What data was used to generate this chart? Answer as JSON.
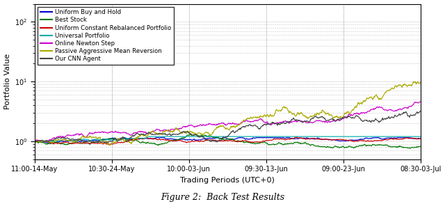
{
  "title": "Figure 2:  Back Test Results",
  "xlabel": "Trading Periods (UTC+0)",
  "ylabel": "Portfolio Value",
  "xtick_labels": [
    "11:00-14-May",
    "10:30-24-May",
    "10:00-03-Jun",
    "09:30-13-Jun",
    "09:00-23-Jun",
    "08:30-03-Jul"
  ],
  "ylim_log": [
    0.5,
    200
  ],
  "legend_entries": [
    {
      "label": "Uniform Buy and Hold",
      "color": "#0000cc",
      "lw": 0.9
    },
    {
      "label": "Best Stock",
      "color": "#007700",
      "lw": 0.9
    },
    {
      "label": "Uniform Constant Rebalanced Portfolio",
      "color": "#cc0000",
      "lw": 0.9
    },
    {
      "label": "Universal Portfolio",
      "color": "#00aaaa",
      "lw": 0.9
    },
    {
      "label": "Online Newton Step",
      "color": "#cc00cc",
      "lw": 0.9
    },
    {
      "label": "Passive Aggressive Mean Reversion",
      "color": "#aaaa00",
      "lw": 0.9
    },
    {
      "label": "Our CNN Agent",
      "color": "#444444",
      "lw": 0.9
    }
  ],
  "n_steps": 1000,
  "background_color": "#ffffff",
  "grid_color": "#999999",
  "seed": 42
}
